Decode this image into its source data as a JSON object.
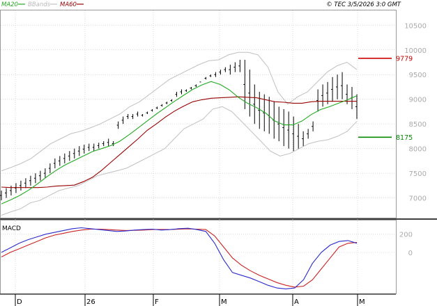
{
  "header": {
    "legend": [
      {
        "label": "MA20",
        "color": "#22aa22"
      },
      {
        "label": "BBands",
        "color": "#c0c0c0"
      },
      {
        "label": "MA60",
        "color": "#990000"
      }
    ],
    "source": "© TEC 3/5/2026 3:0 GMT"
  },
  "colors": {
    "price": "#000000",
    "ma20": "#22aa22",
    "ma60": "#990000",
    "bbands": "#c0c0c0",
    "macd": "#2a2acc",
    "signal": "#cc2222",
    "grid": "#cccccc"
  },
  "chart_data": [
    {
      "type": "line",
      "panel": "price",
      "y_tick_labels": [
        "7000",
        "7500",
        "8000",
        "8500",
        "9000",
        "9500",
        "10000",
        "10500"
      ],
      "ylim": [
        6600,
        10800
      ],
      "x_tick_labels": [
        "D",
        "26",
        "F",
        "M",
        "A",
        "M"
      ],
      "grid": true,
      "annotations": [
        {
          "label": "9779",
          "value": 9830,
          "color": "#cc0000"
        },
        {
          "label": "8175",
          "value": 8230,
          "color": "#008800"
        }
      ],
      "series": [
        {
          "name": "MA20",
          "values": [
            6880,
            6960,
            7050,
            7160,
            7290,
            7430,
            7560,
            7670,
            7760,
            7850,
            7940,
            8000,
            8060,
            8150,
            8280,
            8420,
            8560,
            8700,
            8830,
            8960,
            9080,
            9200,
            9290,
            9360,
            9300,
            9190,
            9040,
            8920,
            8830,
            8720,
            8560,
            8480,
            8480,
            8560,
            8690,
            8790,
            8850,
            8920,
            8990,
            9070
          ]
        },
        {
          "name": "MA60",
          "values": [
            7220,
            7210,
            7210,
            7210,
            7210,
            7220,
            7240,
            7250,
            7260,
            7330,
            7420,
            7560,
            7720,
            7880,
            8040,
            8200,
            8370,
            8500,
            8640,
            8760,
            8860,
            8950,
            8990,
            9020,
            9030,
            9040,
            9050,
            9040,
            9030,
            8990,
            8950,
            8940,
            8920,
            8920,
            8950,
            8960,
            8960,
            8960,
            8960,
            8960
          ]
        },
        {
          "name": "BBands upper",
          "values": [
            7550,
            7620,
            7700,
            7800,
            7950,
            8100,
            8200,
            8300,
            8350,
            8420,
            8500,
            8600,
            8700,
            8850,
            8950,
            9100,
            9250,
            9400,
            9500,
            9600,
            9700,
            9780,
            9800,
            9900,
            9950,
            9950,
            9900,
            9650,
            9150,
            8900,
            9050,
            9150,
            9350,
            9550,
            9680,
            9750,
            9600
          ]
        },
        {
          "name": "BBands lower",
          "values": [
            6650,
            6720,
            6780,
            6900,
            6950,
            7050,
            7150,
            7200,
            7250,
            7350,
            7450,
            7500,
            7550,
            7600,
            7700,
            7800,
            7900,
            8000,
            8200,
            8400,
            8500,
            8600,
            8800,
            8850,
            8750,
            8550,
            8350,
            8150,
            7950,
            7850,
            7900,
            8000,
            8100,
            8150,
            8180,
            8250,
            8350,
            8550
          ]
        }
      ],
      "ohlc_high": [
        7150,
        7200,
        7250,
        7300,
        7350,
        7400,
        7450,
        7500,
        7550,
        7600,
        7700,
        7800,
        7850,
        7900,
        7950,
        8000,
        8050,
        8080,
        8100,
        8100,
        8120,
        8150,
        8200,
        8150,
        8400,
        8500,
        8600,
        8600,
        8650,
        8650,
        8700,
        8750,
        8800,
        8850,
        8900,
        8950,
        9050,
        9100,
        9150,
        9200,
        9250,
        9350,
        9450,
        9500,
        9550,
        9600,
        9650,
        9700,
        9750,
        9800,
        9800,
        9600,
        9300,
        9150,
        9100,
        9050,
        8950,
        8850,
        8800,
        8750,
        8650,
        8500,
        8350,
        8400,
        8550,
        9200,
        9300,
        9350,
        9450,
        9500,
        9550,
        9300,
        9250,
        9100
      ],
      "ohlc_low": [
        6950,
        7000,
        7050,
        7100,
        7150,
        7200,
        7250,
        7300,
        7350,
        7400,
        7500,
        7600,
        7650,
        7700,
        7750,
        7800,
        7850,
        7900,
        7950,
        7950,
        8000,
        8050,
        8050,
        8050,
        8550,
        8650,
        8700,
        8700,
        8750,
        8700,
        8750,
        8800,
        8850,
        8900,
        8950,
        9000,
        9150,
        9200,
        9200,
        9250,
        9300,
        9350,
        9400,
        9450,
        9450,
        9500,
        9550,
        9500,
        9550,
        9550,
        8800,
        8650,
        8500,
        8400,
        8350,
        8300,
        8200,
        8150,
        8050,
        8000,
        7950,
        8000,
        8050,
        8200,
        8350,
        8750,
        8850,
        8900,
        8950,
        9000,
        9000,
        8900,
        8800,
        8600
      ]
    },
    {
      "type": "line",
      "panel": "macd",
      "title": "MACD",
      "y_tick_labels": [
        "200",
        "0"
      ],
      "ylim": [
        -450,
        350
      ],
      "x_tick_labels": [
        "D",
        "26",
        "F",
        "M",
        "A",
        "M"
      ],
      "grid": true,
      "series": [
        {
          "values": [
            0,
            50,
            100,
            140,
            170,
            200,
            220,
            240,
            260,
            270,
            260,
            250,
            240,
            230,
            235,
            245,
            250,
            255,
            245,
            250,
            260,
            265,
            250,
            230,
            100,
            -80,
            -220,
            -250,
            -280,
            -320,
            -360,
            -390,
            -400,
            -390,
            -300,
            -120,
            0,
            80,
            120,
            130,
            100
          ]
        },
        {
          "values": [
            -50,
            0,
            40,
            80,
            120,
            160,
            190,
            210,
            230,
            245,
            255,
            255,
            250,
            245,
            240,
            242,
            245,
            250,
            252,
            250,
            255,
            258,
            255,
            250,
            180,
            60,
            -60,
            -140,
            -200,
            -250,
            -290,
            -330,
            -360,
            -380,
            -370,
            -300,
            -180,
            -60,
            60,
            100,
            110
          ]
        }
      ]
    }
  ]
}
